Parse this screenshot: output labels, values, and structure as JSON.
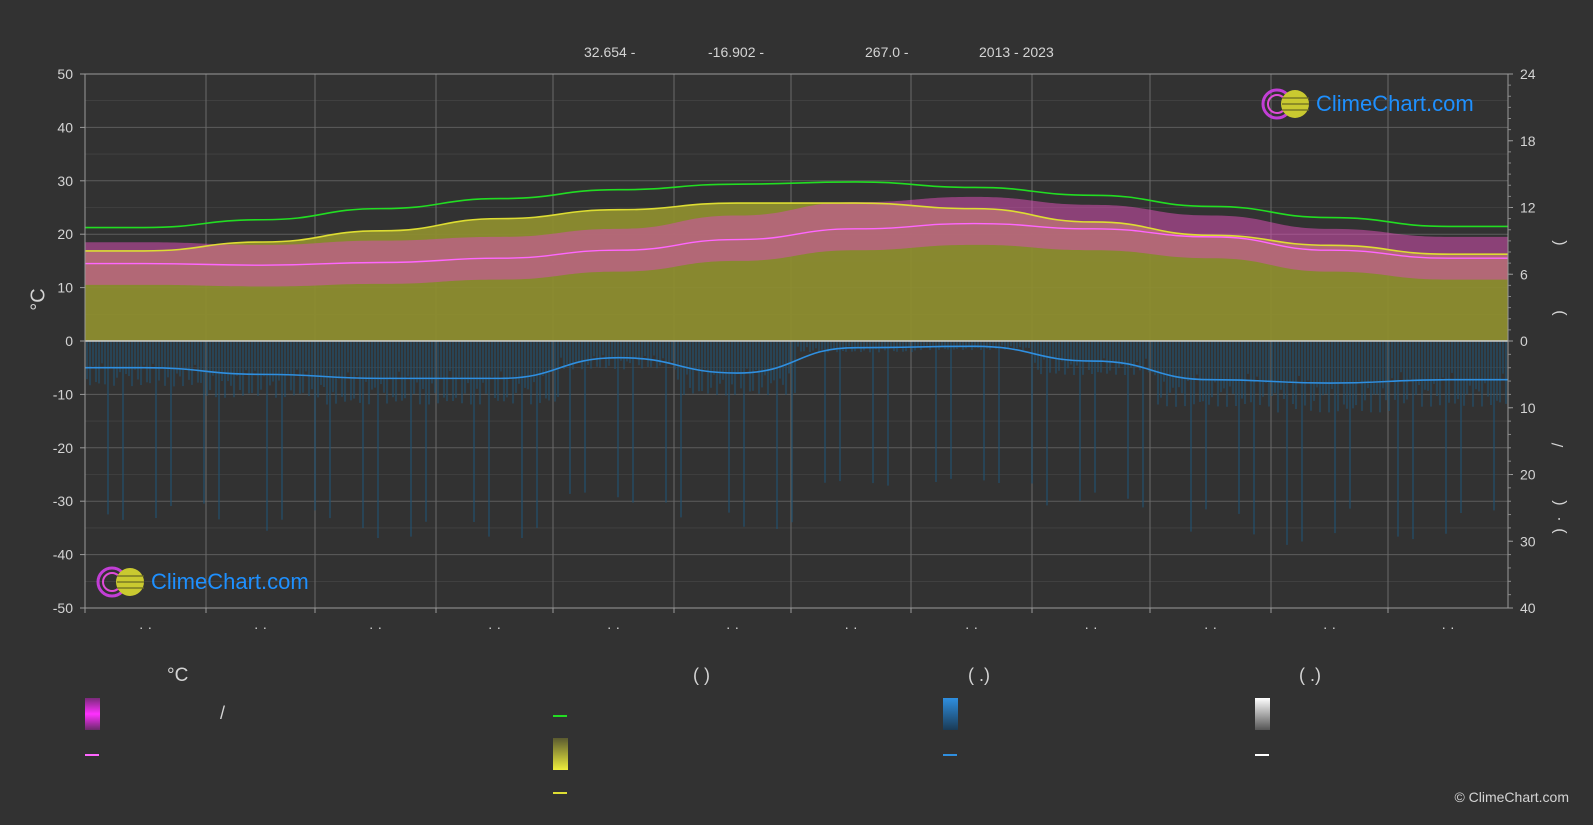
{
  "header": {
    "lat": "32.654 -",
    "lon": "-16.902 -",
    "elev": "267.0 -",
    "years": "2013 - 2023"
  },
  "axes": {
    "left_unit": "°C",
    "right_glyphs": [
      "(",
      ")",
      "/",
      "(",
      "·",
      ")"
    ],
    "month_labels": [
      "· ·",
      "· ·",
      "· ·",
      "· ·",
      "· ·",
      "· ·",
      "· ·",
      "· ·",
      "· ·",
      "· ·",
      "· ·",
      "· ·"
    ]
  },
  "logos": {
    "text": "ClimeChart.com"
  },
  "legend": {
    "col1_head": "°C",
    "col1_slash": "/",
    "col2_head": "(          )",
    "col3_head": "(   .)",
    "col4_head": "(   .)"
  },
  "copyright": "© ClimeChart.com",
  "colors": {
    "background": "#323232",
    "daylight": "#22dd22",
    "sunshine": "#dddd33",
    "sunshine_fill": "#8d8d2f",
    "max_temp": "#ff66ff",
    "max_temp_band": "#d64fb1",
    "rain": "#2f8fe0",
    "rain_bars": "#23516f",
    "snow": "#ffffff"
  },
  "chart_data": {
    "type": "line",
    "x": [
      1,
      2,
      3,
      4,
      5,
      6,
      7,
      8,
      9,
      10,
      11,
      12
    ],
    "left_axis": {
      "ticks": [
        50,
        40,
        30,
        20,
        10,
        0,
        -10,
        -20,
        -30,
        -40,
        -50
      ],
      "ylim": [
        -50,
        50
      ]
    },
    "right_axis_top": {
      "ticks": [
        24,
        18,
        12,
        6,
        0
      ],
      "ylim": [
        0,
        24
      ]
    },
    "right_axis_bottom": {
      "ticks": [
        0,
        10,
        20,
        30,
        40
      ],
      "ylim": [
        0,
        40
      ]
    },
    "grid": true,
    "series": [
      {
        "key": "daylight",
        "values": [
          10.2,
          10.9,
          11.9,
          12.8,
          13.6,
          14.1,
          14.3,
          13.8,
          13.1,
          12.1,
          11.1,
          10.3
        ]
      },
      {
        "key": "sunshine",
        "values": [
          8.1,
          8.9,
          9.9,
          11.0,
          11.8,
          12.4,
          12.4,
          11.9,
          10.7,
          9.5,
          8.6,
          7.8
        ]
      },
      {
        "key": "temp_mean",
        "values": [
          14.5,
          14.2,
          14.7,
          15.5,
          17.0,
          19.0,
          21.0,
          22.0,
          21.0,
          19.5,
          17.0,
          15.5
        ]
      },
      {
        "key": "temp_band_max",
        "values": [
          18.5,
          18.0,
          18.8,
          19.5,
          21.0,
          23.5,
          26.0,
          27.0,
          25.5,
          23.5,
          21.0,
          19.5
        ]
      },
      {
        "key": "precip",
        "values": [
          4.0,
          5.0,
          5.6,
          5.6,
          2.5,
          4.8,
          1.0,
          0.8,
          3.0,
          5.8,
          6.3,
          5.8
        ]
      }
    ]
  }
}
